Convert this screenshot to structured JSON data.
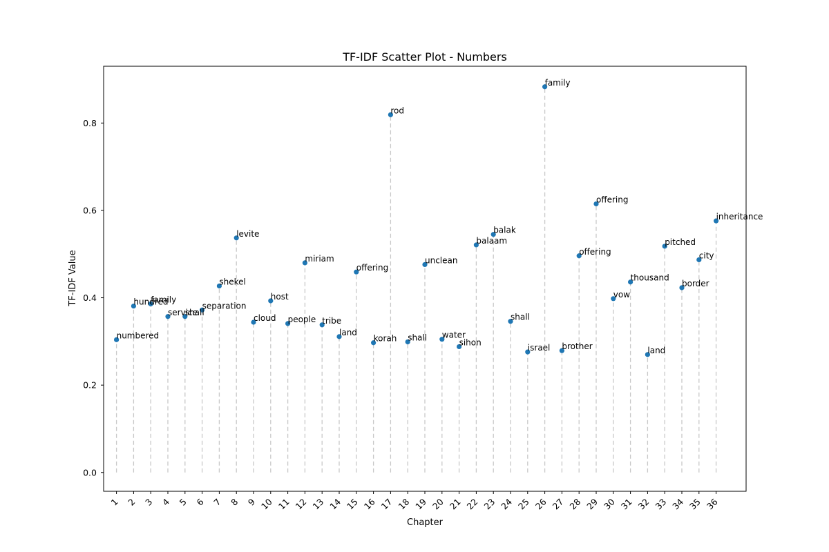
{
  "chart_data": {
    "type": "scatter",
    "title": "TF-IDF Scatter Plot - Numbers",
    "xlabel": "Chapter",
    "ylabel": "TF-IDF Value",
    "ylim": [
      -0.043,
      0.93
    ],
    "xlim": [
      -0.75,
      36.75
    ],
    "y_ticks": [
      0.0,
      0.2,
      0.4,
      0.6,
      0.8
    ],
    "y_tick_labels": [
      "0.0",
      "0.2",
      "0.4",
      "0.6",
      "0.8"
    ],
    "x_tick_rotation": "45deg",
    "grid": false,
    "stems": "dashed vertical lines from 0 to each point",
    "marker_color": "#1f77b4",
    "stem_color": "#c8c8c8",
    "highlight_max_color": "#008000",
    "highlight_min_color": "#ff0000",
    "points": [
      {
        "chapter": "1",
        "word": "numbered",
        "value": 0.304
      },
      {
        "chapter": "2",
        "word": "hundred",
        "value": 0.381
      },
      {
        "chapter": "3",
        "word": "family",
        "value": 0.386
      },
      {
        "chapter": "4",
        "word": "service",
        "value": 0.357
      },
      {
        "chapter": "5",
        "word": "shall",
        "value": 0.357
      },
      {
        "chapter": "6",
        "word": "separation",
        "value": 0.372
      },
      {
        "chapter": "7",
        "word": "shekel",
        "value": 0.427
      },
      {
        "chapter": "8",
        "word": "levite",
        "value": 0.537
      },
      {
        "chapter": "9",
        "word": "cloud",
        "value": 0.344
      },
      {
        "chapter": "10",
        "word": "host",
        "value": 0.393
      },
      {
        "chapter": "11",
        "word": "people",
        "value": 0.341
      },
      {
        "chapter": "12",
        "word": "miriam",
        "value": 0.48
      },
      {
        "chapter": "13",
        "word": "tribe",
        "value": 0.338
      },
      {
        "chapter": "14",
        "word": "land",
        "value": 0.311
      },
      {
        "chapter": "15",
        "word": "offering",
        "value": 0.459
      },
      {
        "chapter": "16",
        "word": "korah",
        "value": 0.297
      },
      {
        "chapter": "17",
        "word": "rod",
        "value": 0.819
      },
      {
        "chapter": "18",
        "word": "shall",
        "value": 0.299
      },
      {
        "chapter": "19",
        "word": "unclean",
        "value": 0.476
      },
      {
        "chapter": "20",
        "word": "water",
        "value": 0.305
      },
      {
        "chapter": "21",
        "word": "sihon",
        "value": 0.288
      },
      {
        "chapter": "22",
        "word": "balaam",
        "value": 0.521
      },
      {
        "chapter": "23",
        "word": "balak",
        "value": 0.545
      },
      {
        "chapter": "24",
        "word": "shall",
        "value": 0.346
      },
      {
        "chapter": "25",
        "word": "israel",
        "value": 0.276
      },
      {
        "chapter": "26",
        "word": "family",
        "value": 0.883,
        "highlight": "max"
      },
      {
        "chapter": "27",
        "word": "brother",
        "value": 0.279
      },
      {
        "chapter": "28",
        "word": "offering",
        "value": 0.496
      },
      {
        "chapter": "29",
        "word": "offering",
        "value": 0.615
      },
      {
        "chapter": "30",
        "word": "vow",
        "value": 0.398
      },
      {
        "chapter": "31",
        "word": "thousand",
        "value": 0.436
      },
      {
        "chapter": "32",
        "word": "land",
        "value": 0.27,
        "highlight": "min"
      },
      {
        "chapter": "33",
        "word": "pitched",
        "value": 0.518
      },
      {
        "chapter": "34",
        "word": "border",
        "value": 0.423
      },
      {
        "chapter": "35",
        "word": "city",
        "value": 0.487
      },
      {
        "chapter": "36",
        "word": "inheritance",
        "value": 0.576
      }
    ]
  }
}
